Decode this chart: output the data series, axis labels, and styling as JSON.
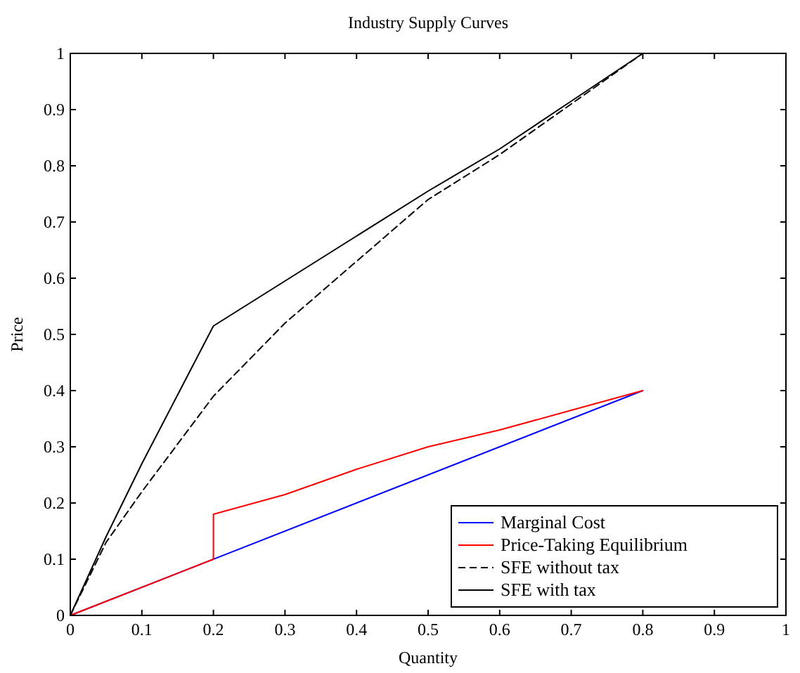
{
  "chart_data": {
    "type": "line",
    "title": "Industry Supply Curves",
    "xlabel": "Quantity",
    "ylabel": "Price",
    "xlim": [
      0,
      1
    ],
    "ylim": [
      0,
      1
    ],
    "xticks": [
      0,
      0.1,
      0.2,
      0.3,
      0.4,
      0.5,
      0.6,
      0.7,
      0.8,
      0.9,
      1
    ],
    "yticks": [
      0,
      0.1,
      0.2,
      0.3,
      0.4,
      0.5,
      0.6,
      0.7,
      0.8,
      0.9,
      1
    ],
    "grid": false,
    "legend": "bottom right",
    "marker": "none",
    "series": [
      {
        "name": "Marginal Cost",
        "color": "#0000ff",
        "x": [
          0,
          0.8
        ],
        "values": [
          0,
          0.4
        ],
        "line_style": "solid"
      },
      {
        "name": "Price-Taking Equilibrium",
        "color": "#ff0000",
        "x": [
          0,
          0.2,
          0.2,
          0.3,
          0.4,
          0.5,
          0.6,
          0.7,
          0.8
        ],
        "values": [
          0,
          0.1,
          0.18,
          0.215,
          0.26,
          0.3,
          0.33,
          0.365,
          0.4
        ],
        "line_style": "solid"
      },
      {
        "name": "SFE without tax",
        "color": "#000000",
        "x": [
          0,
          0.05,
          0.1,
          0.2,
          0.3,
          0.4,
          0.5,
          0.6,
          0.7,
          0.8
        ],
        "values": [
          0,
          0.13,
          0.22,
          0.39,
          0.52,
          0.63,
          0.74,
          0.82,
          0.91,
          1
        ],
        "line_style": "dashed"
      },
      {
        "name": "SFE with tax",
        "color": "#000000",
        "x": [
          0,
          0.05,
          0.1,
          0.2,
          0.3,
          0.4,
          0.5,
          0.6,
          0.7,
          0.8
        ],
        "values": [
          0,
          0.14,
          0.27,
          0.515,
          0.595,
          0.675,
          0.755,
          0.83,
          0.915,
          1
        ],
        "line_style": "solid"
      }
    ]
  }
}
